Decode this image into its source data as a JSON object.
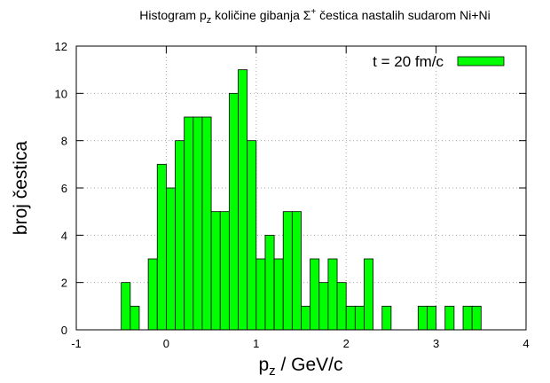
{
  "chart_data": {
    "type": "histogram",
    "title": [
      "Histogram p",
      "z",
      " količine gibanja Σ",
      "+",
      " čestica nastalih sudarom Ni+Ni"
    ],
    "xlabel": [
      "p",
      "z",
      " / GeV/c"
    ],
    "ylabel": "broj čestica",
    "bins": [
      -0.5,
      -0.4,
      -0.3,
      -0.2,
      -0.1,
      0,
      0.1,
      0.2,
      0.3,
      0.4,
      0.5,
      0.6,
      0.7,
      0.8,
      0.9,
      1.0,
      1.1,
      1.2,
      1.3,
      1.4,
      1.5,
      1.6,
      1.7,
      1.8,
      1.9,
      2.0,
      2.1,
      2.2,
      2.3,
      2.4,
      2.5,
      2.6,
      2.7,
      2.8,
      2.9,
      3.0,
      3.1,
      3.2,
      3.3,
      3.4,
      3.5
    ],
    "series": [
      {
        "name": "t = 20 fm/c",
        "color": "#00ff00",
        "values": [
          2,
          1,
          0,
          3,
          7,
          6,
          8,
          9,
          9,
          9,
          5,
          5,
          10,
          11,
          8,
          3,
          4,
          3,
          5,
          5,
          1,
          3,
          2,
          3,
          2,
          1,
          1,
          3,
          0,
          1,
          0,
          0,
          0,
          1,
          1,
          0,
          1,
          0,
          1,
          1
        ]
      }
    ],
    "xlim": [
      -1,
      4
    ],
    "xticks": [
      -1,
      0,
      1,
      2,
      3,
      4
    ],
    "ylim": [
      0,
      12
    ],
    "yticks": [
      0,
      2,
      4,
      6,
      8,
      10,
      12
    ],
    "grid": true,
    "legend": "top-right"
  }
}
